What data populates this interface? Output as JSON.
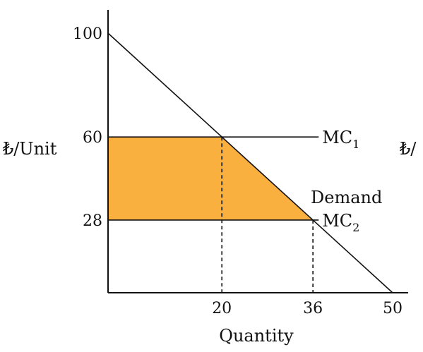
{
  "chart_data": {
    "type": "line",
    "title": "",
    "xlabel": "Quantity",
    "ylabel_left": "₺/Unit",
    "ylabel_right": "₺/",
    "xlim": [
      0,
      50
    ],
    "ylim": [
      0,
      100
    ],
    "x_ticks": [
      {
        "value": 20,
        "label": "20"
      },
      {
        "value": 36,
        "label": "36"
      },
      {
        "value": 50,
        "label": "50"
      }
    ],
    "y_ticks": [
      {
        "value": 100,
        "label": "100"
      },
      {
        "value": 60,
        "label": "60"
      },
      {
        "value": 28,
        "label": "28"
      }
    ],
    "demand": {
      "name": "Demand",
      "points": [
        [
          0,
          100
        ],
        [
          50,
          0
        ]
      ]
    },
    "mc_lines": [
      {
        "name": "MC",
        "subscript": "1",
        "y": 60,
        "x_end": 37
      },
      {
        "name": "MC",
        "subscript": "2",
        "y": 28,
        "x_end": 37
      }
    ],
    "shaded_area": {
      "x_left": 0,
      "x_top_right": 20,
      "x_bottom_right": 36,
      "y_top": 60,
      "y_bottom": 28
    },
    "dashed_verticals": [
      {
        "x": 20,
        "y_top": 60
      },
      {
        "x": 36,
        "y_top": 28
      }
    ],
    "colors": {
      "shade": "#F9B03E",
      "line": "#111111"
    }
  }
}
